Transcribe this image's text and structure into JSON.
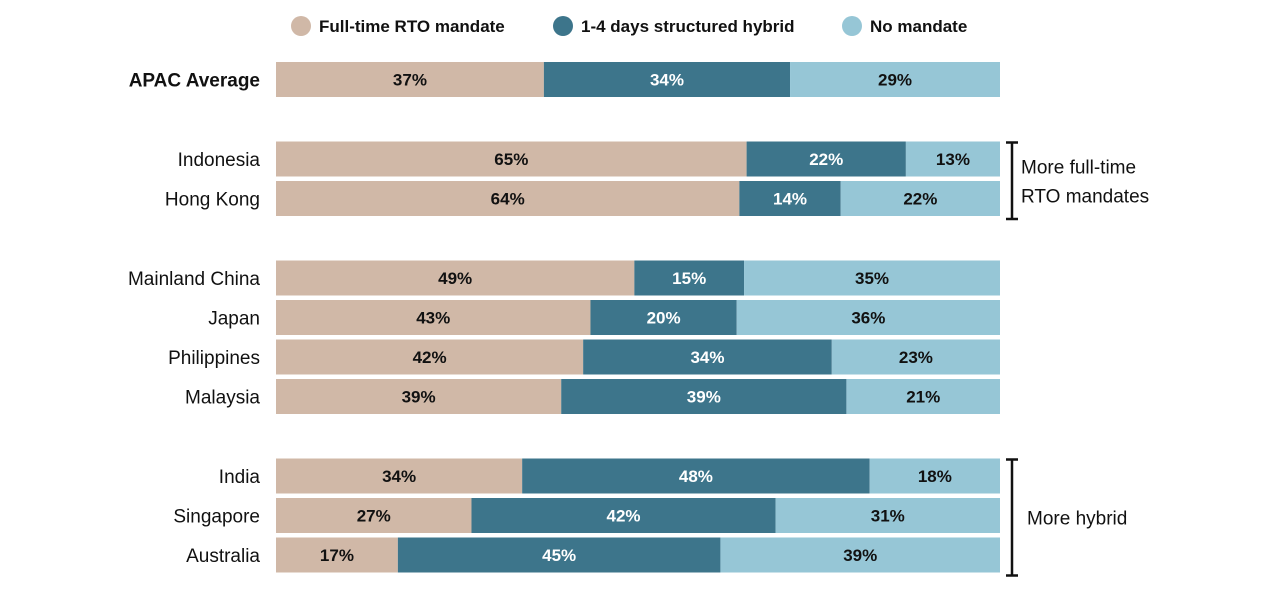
{
  "chart_data": {
    "type": "bar",
    "orientation": "horizontal",
    "stacked": true,
    "legend_position": "top",
    "xlim": [
      0,
      100
    ],
    "categories": [
      "APAC Average",
      "Indonesia",
      "Hong Kong",
      "Mainland China",
      "Japan",
      "Philippines",
      "Malaysia",
      "India",
      "Singapore",
      "Australia"
    ],
    "value_labels": {
      "APAC Average": [
        "37%",
        "34%",
        "29%"
      ],
      "Indonesia": [
        "65%",
        "22%",
        "13%"
      ],
      "Hong Kong": [
        "64%",
        "14%",
        "22%"
      ],
      "Mainland China": [
        "49%",
        "15%",
        "35%"
      ],
      "Japan": [
        "43%",
        "20%",
        "36%"
      ],
      "Philippines": [
        "42%",
        "34%",
        "23%"
      ],
      "Malaysia": [
        "39%",
        "39%",
        "21%"
      ],
      "India": [
        "34%",
        "48%",
        "18%"
      ],
      "Singapore": [
        "27%",
        "42%",
        "31%"
      ],
      "Australia": [
        "17%",
        "45%",
        "39%"
      ]
    },
    "series": [
      {
        "name": "Full-time RTO mandate",
        "color": "#d0b8a7",
        "label_color": "#111111",
        "values": [
          37,
          65,
          64,
          49,
          43,
          42,
          39,
          34,
          27,
          17
        ]
      },
      {
        "name": "1-4 days structured hybrid",
        "color": "#3d758b",
        "label_color": "#ffffff",
        "values": [
          34,
          22,
          14,
          15,
          20,
          34,
          39,
          48,
          42,
          45
        ]
      },
      {
        "name": "No mandate",
        "color": "#96c6d6",
        "label_color": "#111111",
        "values": [
          29,
          13,
          22,
          35,
          36,
          23,
          21,
          18,
          31,
          39
        ]
      }
    ],
    "bold_categories": [
      "APAC Average"
    ],
    "groups": [
      [
        0
      ],
      [
        1,
        2
      ],
      [
        3,
        4,
        5,
        6
      ],
      [
        7,
        8,
        9
      ]
    ],
    "annotations": [
      {
        "lines": [
          "More full-time",
          "RTO mandates"
        ],
        "from_category": "Indonesia",
        "to_category": "Hong Kong"
      },
      {
        "lines": [
          "More hybrid"
        ],
        "from_category": "India",
        "to_category": "Australia"
      }
    ]
  }
}
